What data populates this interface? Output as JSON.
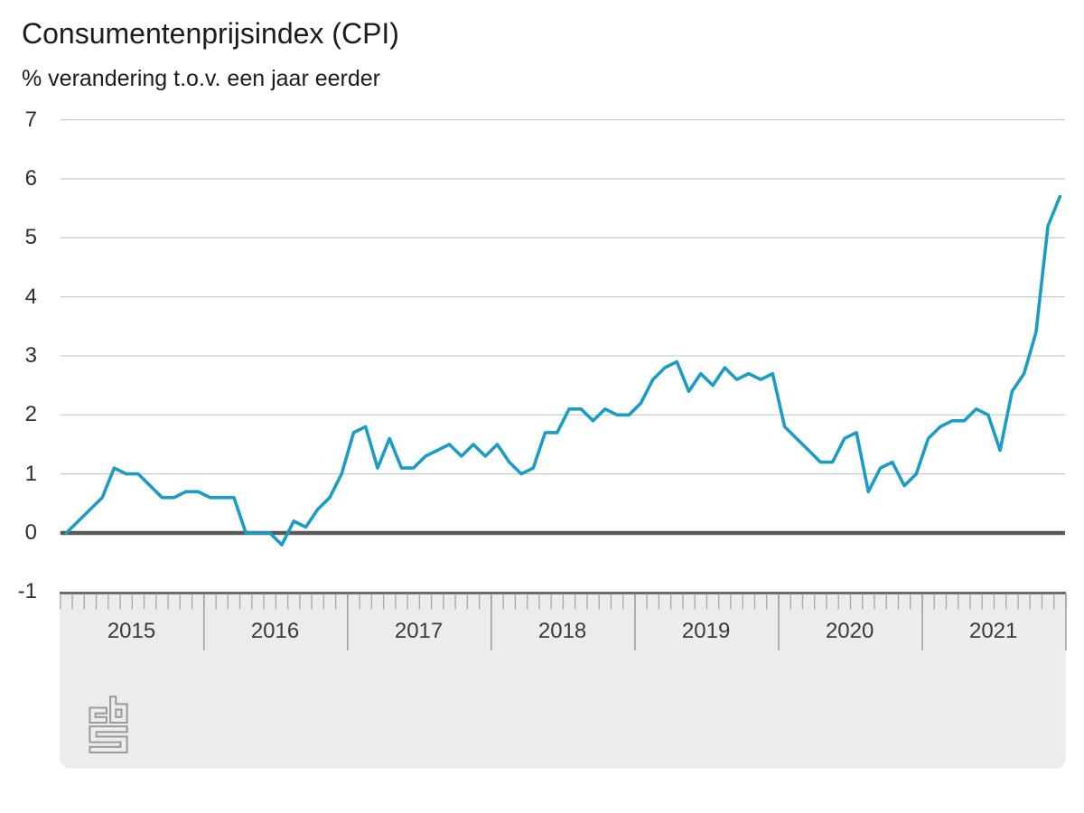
{
  "header": {
    "title": "Consumentenprijsindex (CPI)",
    "subtitle": "% verandering t.o.v. een jaar eerder"
  },
  "colors": {
    "series_line": "#1a9cc7",
    "zero_line": "#58585a",
    "gridline": "#c9c9c9",
    "panel_background": "#ececec",
    "panel_border": "#6b6b6d",
    "tick_minor": "#ababab",
    "tick_year": "#9e9e9e",
    "logo_gray": "#9b9b9b",
    "text_dark": "#1c1c1c"
  },
  "chart_data": {
    "type": "line",
    "title": "Consumentenprijsindex (CPI)",
    "subtitle": "% verandering t.o.v. een jaar eerder",
    "series_name": "CPI, % verandering t.o.v. een jaar eerder",
    "frequency": "monthly",
    "x_start": "2015-01",
    "x_end": "2021-12",
    "x_year_labels": [
      "2015",
      "2016",
      "2017",
      "2018",
      "2019",
      "2020",
      "2021"
    ],
    "y_ticks": [
      7,
      6,
      5,
      4,
      3,
      2,
      1,
      0,
      -1
    ],
    "ylim": [
      -1,
      7
    ],
    "grid": "horizontal",
    "legend": "none",
    "values": [
      0.0,
      0.2,
      0.4,
      0.6,
      1.1,
      1.0,
      1.0,
      0.8,
      0.6,
      0.6,
      0.7,
      0.7,
      0.6,
      0.6,
      0.6,
      0.0,
      0.0,
      0.0,
      -0.2,
      0.2,
      0.1,
      0.4,
      0.6,
      1.0,
      1.7,
      1.8,
      1.1,
      1.6,
      1.1,
      1.1,
      1.3,
      1.4,
      1.5,
      1.3,
      1.5,
      1.3,
      1.5,
      1.2,
      1.0,
      1.1,
      1.7,
      1.7,
      2.1,
      2.1,
      1.9,
      2.1,
      2.0,
      2.0,
      2.2,
      2.6,
      2.8,
      2.9,
      2.4,
      2.7,
      2.5,
      2.8,
      2.6,
      2.7,
      2.6,
      2.7,
      1.8,
      1.6,
      1.4,
      1.2,
      1.2,
      1.6,
      1.7,
      0.7,
      1.1,
      1.2,
      0.8,
      1.0,
      1.6,
      1.8,
      1.9,
      1.9,
      2.1,
      2.0,
      1.4,
      2.4,
      2.7,
      3.4,
      5.2,
      5.7
    ]
  }
}
